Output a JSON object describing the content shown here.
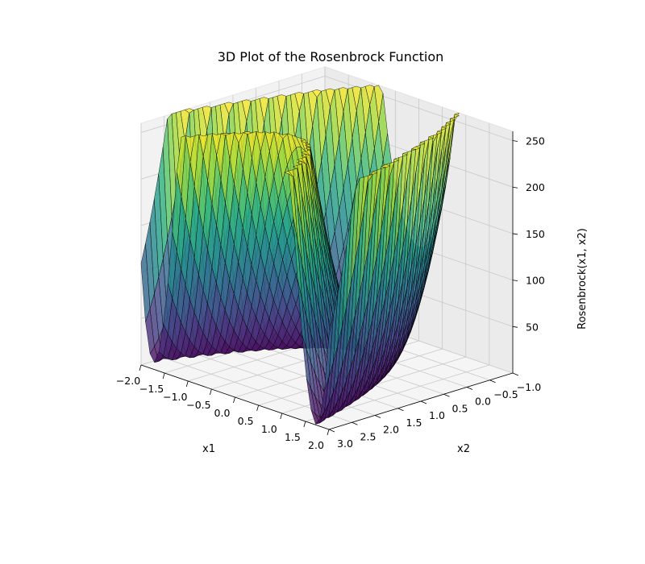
{
  "chart_data": {
    "type": "surface3d",
    "title": "3D Plot of the Rosenbrock Function",
    "function": "Rosenbrock",
    "xlabel": "x1",
    "ylabel": "x2",
    "zlabel": "Rosenbrock(x1, x2)",
    "x_range": [
      -2.0,
      2.0
    ],
    "y_range": [
      -1.0,
      3.0
    ],
    "z_range": [
      0,
      260
    ],
    "x_ticks": [
      2.0,
      1.5,
      1.0,
      0.5,
      0.0,
      -0.5,
      -1.0,
      -1.5,
      -2.0
    ],
    "x_tick_labels": [
      "2.0",
      "1.5",
      "1.0",
      "0.5",
      "0.0",
      "−0.5",
      "−1.0",
      "−1.5",
      "−2.0"
    ],
    "y_ticks": [
      -1.0,
      -0.5,
      0.0,
      0.5,
      1.0,
      1.5,
      2.0,
      2.5,
      3.0
    ],
    "y_tick_labels": [
      "−1.0",
      "−0.5",
      "0.0",
      "0.5",
      "1.0",
      "1.5",
      "2.0",
      "2.5",
      "3.0"
    ],
    "z_ticks": [
      50,
      100,
      150,
      200,
      250
    ],
    "z_tick_labels": [
      "50",
      "100",
      "150",
      "200",
      "250"
    ],
    "grid": true,
    "colormap": "viridis",
    "colormap_stops": [
      "#440154",
      "#472c7a",
      "#3b518b",
      "#2c718e",
      "#21908d",
      "#27ad81",
      "#5cc863",
      "#aadc32",
      "#fde725"
    ],
    "edge_color": "#000000",
    "surface_alpha": 0.8
  }
}
